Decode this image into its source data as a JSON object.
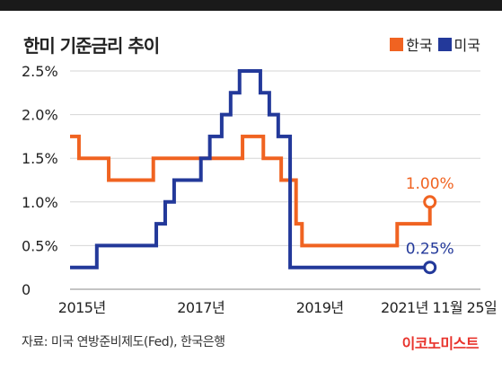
{
  "title": "한미 기준금리 추이",
  "legend": [
    {
      "label": "한국",
      "color": "#f06321"
    },
    {
      "label": "미국",
      "color": "#23399a"
    }
  ],
  "source": "자료: 미국 연방준비제도(Fed), 한국은행",
  "logo": "이코노미스트",
  "chart_data": {
    "type": "line",
    "title": "한미 기준금리 추이",
    "xlabel": "",
    "ylabel": "",
    "ylim": [
      0,
      2.5
    ],
    "xlim": [
      2015.0,
      2021.9
    ],
    "y_ticks": [
      {
        "value": 0,
        "label": "0"
      },
      {
        "value": 0.5,
        "label": "0.5%"
      },
      {
        "value": 1.0,
        "label": "1.0%"
      },
      {
        "value": 1.5,
        "label": "1.5%"
      },
      {
        "value": 2.0,
        "label": "2.0%"
      },
      {
        "value": 2.5,
        "label": "2.5%"
      }
    ],
    "x_ticks": [
      {
        "value": 2015.2,
        "label": "2015년"
      },
      {
        "value": 2017.2,
        "label": "2017년"
      },
      {
        "value": 2019.2,
        "label": "2019년"
      },
      {
        "value": 2021.2,
        "label": "2021년 11월 25일"
      }
    ],
    "grid": "horizontal",
    "legend_position": "top-right",
    "series": [
      {
        "name": "한국",
        "color": "#f06321",
        "step": true,
        "points": [
          [
            2015.0,
            1.75
          ],
          [
            2015.15,
            1.5
          ],
          [
            2015.65,
            1.25
          ],
          [
            2016.4,
            1.5
          ],
          [
            2017.9,
            1.75
          ],
          [
            2018.25,
            1.5
          ],
          [
            2018.55,
            1.25
          ],
          [
            2018.8,
            0.75
          ],
          [
            2018.9,
            0.5
          ],
          [
            2020.5,
            0.75
          ],
          [
            2021.05,
            1.0
          ]
        ],
        "end_label": "1.00%"
      },
      {
        "name": "미국",
        "color": "#23399a",
        "step": true,
        "points": [
          [
            2015.0,
            0.25
          ],
          [
            2015.45,
            0.5
          ],
          [
            2016.45,
            0.75
          ],
          [
            2016.6,
            1.0
          ],
          [
            2016.75,
            1.25
          ],
          [
            2017.2,
            1.5
          ],
          [
            2017.35,
            1.75
          ],
          [
            2017.55,
            2.0
          ],
          [
            2017.7,
            2.25
          ],
          [
            2017.85,
            2.5
          ],
          [
            2018.2,
            2.25
          ],
          [
            2018.35,
            2.0
          ],
          [
            2018.5,
            1.75
          ],
          [
            2018.7,
            0.25
          ],
          [
            2021.05,
            0.25
          ]
        ],
        "end_label": "0.25%"
      }
    ]
  }
}
